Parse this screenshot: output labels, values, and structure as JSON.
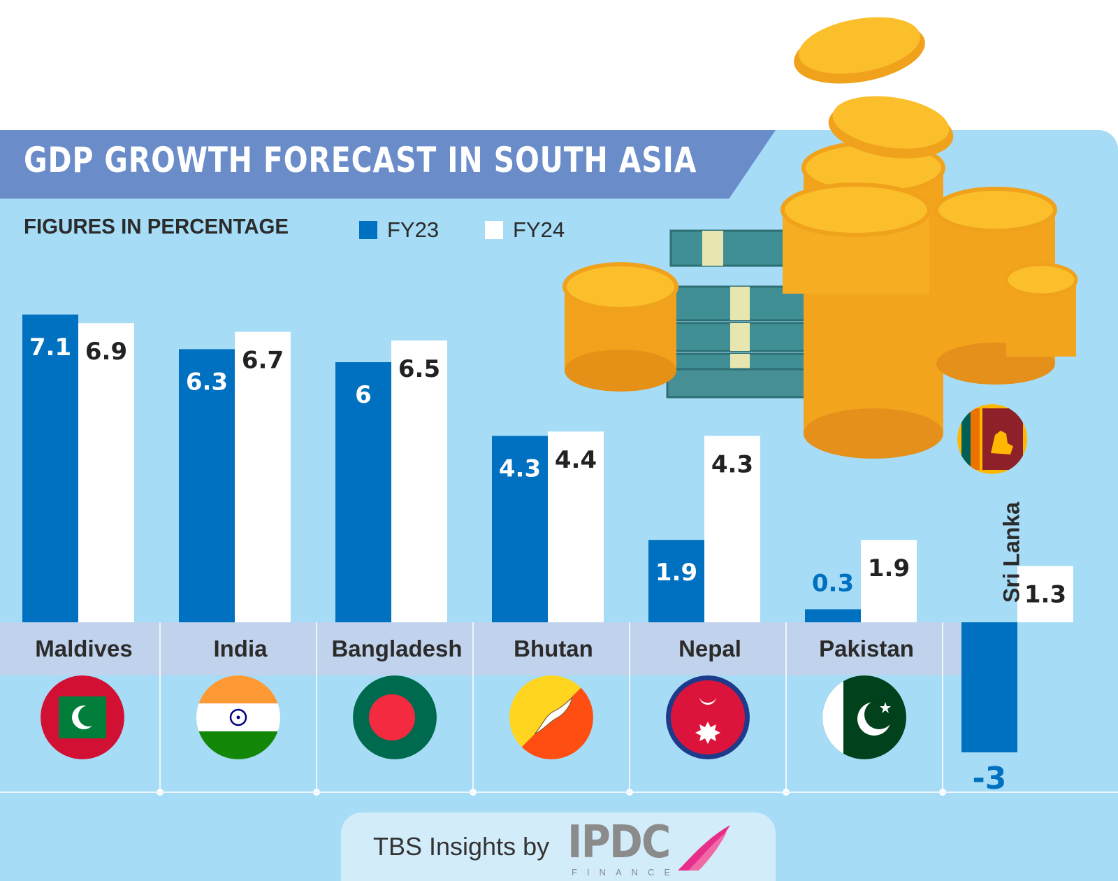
{
  "title": "GDP GROWTH FORECAST IN SOUTH ASIA",
  "subtitle": "FIGURES IN PERCENTAGE",
  "legend": [
    {
      "label": "FY23",
      "color": "#0070c0"
    },
    {
      "label": "FY24",
      "color": "#ffffff"
    }
  ],
  "chart_data": {
    "type": "bar",
    "categories": [
      "Maldives",
      "India",
      "Bangladesh",
      "Bhutan",
      "Nepal",
      "Pakistan",
      "Sri Lanka"
    ],
    "series": [
      {
        "name": "FY23",
        "values": [
          7.1,
          6.3,
          6,
          4.3,
          1.9,
          0.3,
          -3
        ],
        "color": "#0070c0"
      },
      {
        "name": "FY24",
        "values": [
          6.9,
          6.7,
          6.5,
          4.4,
          4.3,
          1.9,
          1.3
        ],
        "color": "#ffffff"
      }
    ],
    "value_labels": {
      "FY23": [
        "7.1",
        "6.3",
        "6",
        "4.3",
        "1.9",
        "0.3",
        "-3"
      ],
      "FY24": [
        "6.9",
        "6.7",
        "6.5",
        "4.4",
        "4.3",
        "1.9",
        "1.3"
      ]
    },
    "grid": false,
    "legend_position": "top-left"
  },
  "flags": [
    "maldives-flag-icon",
    "india-flag-icon",
    "bangladesh-flag-icon",
    "bhutan-flag-icon",
    "nepal-flag-icon",
    "pakistan-flag-icon",
    "sri-lanka-flag-icon"
  ],
  "footer": {
    "text": "TBS Insights by",
    "logo_text": "IPDC",
    "logo_subtext": "FINANCE"
  },
  "colors": {
    "panel": "#a6dcf6",
    "banner": "#6a8cc9",
    "country_band": "#c1d3ec",
    "fy23": "#0070c0",
    "fy24": "#ffffff"
  }
}
